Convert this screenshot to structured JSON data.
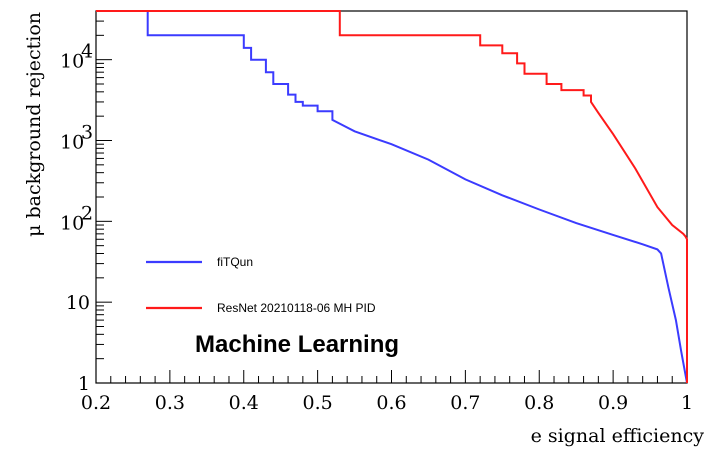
{
  "chart_data": {
    "type": "line",
    "xlabel": "e signal efficiency",
    "ylabel": "μ background rejection",
    "xlim": [
      0.2,
      1.0
    ],
    "ylim": [
      1,
      40000
    ],
    "yscale": "log",
    "grid": false,
    "legend_position": "bottom-left",
    "x_ticks": [
      0.2,
      0.3,
      0.4,
      0.5,
      0.6,
      0.7,
      0.8,
      0.9,
      1
    ],
    "x_tick_labels": [
      "0.2",
      "0.3",
      "0.4",
      "0.5",
      "0.6",
      "0.7",
      "0.8",
      "0.9",
      "1"
    ],
    "y_ticks": [
      {
        "value": 1,
        "base": "1",
        "exp": ""
      },
      {
        "value": 10,
        "base": "10",
        "exp": ""
      },
      {
        "value": 100,
        "base": "10",
        "exp": "2"
      },
      {
        "value": 1000,
        "base": "10",
        "exp": "3"
      },
      {
        "value": 10000,
        "base": "10",
        "exp": "4"
      }
    ],
    "annotation": "Machine Learning",
    "series": [
      {
        "name": "fiTQun",
        "color": "#3b3bff",
        "x": [
          0.2,
          0.27,
          0.27,
          0.4,
          0.4,
          0.41,
          0.41,
          0.43,
          0.43,
          0.44,
          0.44,
          0.46,
          0.46,
          0.47,
          0.47,
          0.48,
          0.48,
          0.5,
          0.5,
          0.52,
          0.52,
          0.55,
          0.6,
          0.65,
          0.7,
          0.75,
          0.8,
          0.85,
          0.9,
          0.94,
          0.96,
          0.965,
          0.975,
          0.985,
          0.992,
          1.0
        ],
        "y": [
          40000,
          40000,
          20000,
          20000,
          14000,
          14000,
          10000,
          10000,
          7000,
          7000,
          5000,
          5000,
          3700,
          3700,
          3000,
          3000,
          2700,
          2700,
          2300,
          2300,
          1800,
          1300,
          900,
          580,
          330,
          210,
          140,
          95,
          68,
          52,
          45,
          40,
          15,
          6,
          2.5,
          1
        ]
      },
      {
        "name": "ResNet 20210118-06 MH PID",
        "color": "#ff1a1a",
        "x": [
          0.2,
          0.53,
          0.53,
          0.72,
          0.72,
          0.75,
          0.75,
          0.77,
          0.77,
          0.78,
          0.78,
          0.81,
          0.81,
          0.83,
          0.83,
          0.86,
          0.86,
          0.87,
          0.87,
          0.88,
          0.9,
          0.93,
          0.96,
          0.98,
          0.995,
          0.998,
          1.0,
          1.0
        ],
        "y": [
          40000,
          40000,
          20000,
          20000,
          15000,
          15000,
          12000,
          12000,
          9000,
          9000,
          6700,
          6700,
          5000,
          5000,
          4200,
          4200,
          3600,
          3600,
          3000,
          2200,
          1200,
          450,
          150,
          90,
          70,
          65,
          60,
          1
        ]
      }
    ]
  }
}
